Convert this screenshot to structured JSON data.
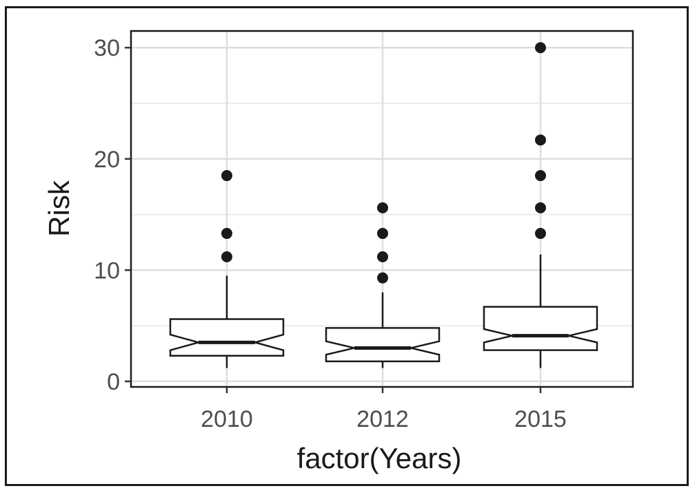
{
  "chart_data": {
    "type": "boxplot",
    "notched": true,
    "xlabel": "factor(Years)",
    "ylabel": "Risk",
    "ylim": [
      -0.5,
      31.5
    ],
    "yticks": [
      0,
      10,
      20,
      30
    ],
    "categories": [
      "2010",
      "2012",
      "2015"
    ],
    "grid": true,
    "boxes": [
      {
        "category": "2010",
        "whisker_low": 1.2,
        "q1": 2.3,
        "notch_low": 2.8,
        "median": 3.5,
        "notch_high": 4.2,
        "q3": 5.6,
        "whisker_high": 9.5,
        "outliers": [
          11.2,
          13.3,
          18.5
        ]
      },
      {
        "category": "2012",
        "whisker_low": 1.2,
        "q1": 1.8,
        "notch_low": 2.4,
        "median": 3.0,
        "notch_high": 3.6,
        "q3": 4.8,
        "whisker_high": 8.0,
        "outliers": [
          9.3,
          11.2,
          13.3,
          15.6
        ]
      },
      {
        "category": "2015",
        "whisker_low": 1.2,
        "q1": 2.8,
        "notch_low": 3.5,
        "median": 4.1,
        "notch_high": 4.7,
        "q3": 6.7,
        "whisker_high": 11.4,
        "outliers": [
          13.3,
          15.6,
          18.5,
          21.7,
          30.0
        ]
      }
    ]
  }
}
